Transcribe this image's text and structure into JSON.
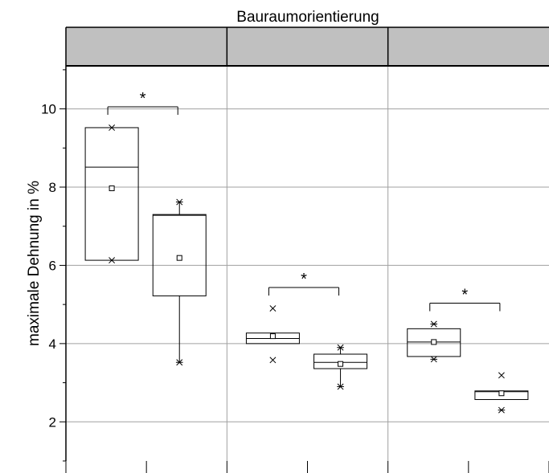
{
  "chart_data": {
    "type": "box",
    "title": "Bauraumorientierung",
    "ylabel": "maximale Dehnung in %",
    "xlabel": "",
    "ylim": [
      1.0,
      11.1
    ],
    "yticks": [
      2,
      4,
      6,
      8,
      10
    ],
    "grid": true,
    "panels": [
      {
        "header": "",
        "boxes": [
          {
            "q1": 6.13,
            "median": 8.51,
            "q3": 9.52,
            "mean": 7.97,
            "whisker_low": null,
            "whisker_high": null,
            "outliers": [
              {
                "value": 9.52,
                "marker": "x"
              },
              {
                "value": 6.13,
                "marker": "x"
              }
            ]
          },
          {
            "q1": 5.22,
            "median": 7.28,
            "q3": 7.3,
            "mean": 6.19,
            "whisker_low": 3.52,
            "whisker_high": 7.62,
            "outliers": [
              {
                "value": 7.62,
                "marker": "star"
              },
              {
                "value": 3.52,
                "marker": "star"
              }
            ]
          }
        ],
        "significance": "*"
      },
      {
        "header": "",
        "boxes": [
          {
            "q1": 4.0,
            "median": 4.13,
            "q3": 4.27,
            "mean": 4.19,
            "whisker_low": null,
            "whisker_high": null,
            "outliers": [
              {
                "value": 4.9,
                "marker": "x"
              },
              {
                "value": 3.58,
                "marker": "x"
              }
            ]
          },
          {
            "q1": 3.36,
            "median": 3.52,
            "q3": 3.73,
            "mean": 3.48,
            "whisker_low": 2.9,
            "whisker_high": 3.9,
            "outliers": [
              {
                "value": 3.9,
                "marker": "star"
              },
              {
                "value": 2.9,
                "marker": "star"
              }
            ]
          }
        ],
        "significance": "*"
      },
      {
        "header": "",
        "boxes": [
          {
            "q1": 3.67,
            "median": 4.04,
            "q3": 4.38,
            "mean": 4.04,
            "whisker_low": null,
            "whisker_high": null,
            "outliers": [
              {
                "value": 4.5,
                "marker": "star"
              },
              {
                "value": 3.6,
                "marker": "star"
              }
            ]
          },
          {
            "q1": 2.57,
            "median": 2.77,
            "q3": 2.79,
            "mean": 2.73,
            "whisker_low": null,
            "whisker_high": null,
            "outliers": [
              {
                "value": 3.19,
                "marker": "x"
              },
              {
                "value": 2.3,
                "marker": "star"
              }
            ]
          }
        ],
        "significance": "*"
      }
    ]
  }
}
